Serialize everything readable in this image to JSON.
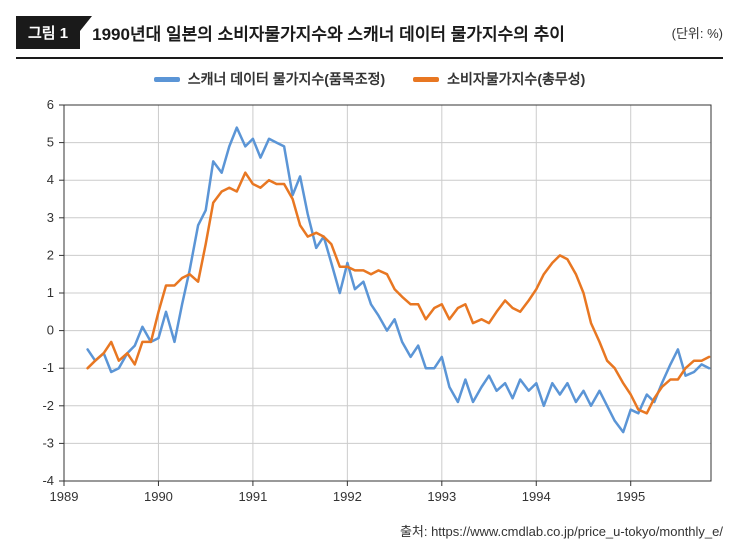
{
  "header": {
    "badge": "그림 1",
    "title": "1990년대 일본의 소비자물가지수와 스캐너 데이터 물가지수의 추이",
    "unit": "(단위: %)"
  },
  "legend": {
    "series1_label": "스캐너 데이터 물가지수(품목조정)",
    "series2_label": "소비자물가지수(총무성)"
  },
  "source": "출처: https://www.cmdlab.co.jp/price_u-tokyo/monthly_e/",
  "chart": {
    "type": "line",
    "background_color": "#ffffff",
    "grid_color": "#cccccc",
    "axis_color": "#333333",
    "label_fontsize": 13,
    "line_width": 2.5,
    "x": {
      "min": 1989,
      "max": 1995.85,
      "ticks": [
        1989,
        1990,
        1991,
        1992,
        1993,
        1994,
        1995
      ],
      "tick_labels": [
        "1989",
        "1990",
        "1991",
        "1992",
        "1993",
        "1994",
        "1995"
      ]
    },
    "y": {
      "min": -4,
      "max": 6,
      "ticks": [
        -4,
        -3,
        -2,
        -1,
        0,
        1,
        2,
        3,
        4,
        5,
        6
      ]
    },
    "series": [
      {
        "name": "scanner",
        "color": "#5b95d6",
        "points": [
          [
            1989.25,
            -0.5
          ],
          [
            1989.33,
            -0.8
          ],
          [
            1989.42,
            -0.6
          ],
          [
            1989.5,
            -1.1
          ],
          [
            1989.58,
            -1.0
          ],
          [
            1989.67,
            -0.6
          ],
          [
            1989.75,
            -0.4
          ],
          [
            1989.83,
            0.1
          ],
          [
            1989.92,
            -0.3
          ],
          [
            1990.0,
            -0.2
          ],
          [
            1990.08,
            0.5
          ],
          [
            1990.17,
            -0.3
          ],
          [
            1990.25,
            0.7
          ],
          [
            1990.33,
            1.6
          ],
          [
            1990.42,
            2.8
          ],
          [
            1990.5,
            3.2
          ],
          [
            1990.58,
            4.5
          ],
          [
            1990.67,
            4.2
          ],
          [
            1990.75,
            4.9
          ],
          [
            1990.83,
            5.4
          ],
          [
            1990.92,
            4.9
          ],
          [
            1991.0,
            5.1
          ],
          [
            1991.08,
            4.6
          ],
          [
            1991.17,
            5.1
          ],
          [
            1991.25,
            5.0
          ],
          [
            1991.33,
            4.9
          ],
          [
            1991.42,
            3.6
          ],
          [
            1991.5,
            4.1
          ],
          [
            1991.58,
            3.1
          ],
          [
            1991.67,
            2.2
          ],
          [
            1991.75,
            2.5
          ],
          [
            1991.83,
            1.8
          ],
          [
            1991.92,
            1.0
          ],
          [
            1992.0,
            1.8
          ],
          [
            1992.08,
            1.1
          ],
          [
            1992.17,
            1.3
          ],
          [
            1992.25,
            0.7
          ],
          [
            1992.33,
            0.4
          ],
          [
            1992.42,
            0.0
          ],
          [
            1992.5,
            0.3
          ],
          [
            1992.58,
            -0.3
          ],
          [
            1992.67,
            -0.7
          ],
          [
            1992.75,
            -0.4
          ],
          [
            1992.83,
            -1.0
          ],
          [
            1992.92,
            -1.0
          ],
          [
            1993.0,
            -0.7
          ],
          [
            1993.08,
            -1.5
          ],
          [
            1993.17,
            -1.9
          ],
          [
            1993.25,
            -1.3
          ],
          [
            1993.33,
            -1.9
          ],
          [
            1993.42,
            -1.5
          ],
          [
            1993.5,
            -1.2
          ],
          [
            1993.58,
            -1.6
          ],
          [
            1993.67,
            -1.4
          ],
          [
            1993.75,
            -1.8
          ],
          [
            1993.83,
            -1.3
          ],
          [
            1993.92,
            -1.6
          ],
          [
            1994.0,
            -1.4
          ],
          [
            1994.08,
            -2.0
          ],
          [
            1994.17,
            -1.4
          ],
          [
            1994.25,
            -1.7
          ],
          [
            1994.33,
            -1.4
          ],
          [
            1994.42,
            -1.9
          ],
          [
            1994.5,
            -1.6
          ],
          [
            1994.58,
            -2.0
          ],
          [
            1994.67,
            -1.6
          ],
          [
            1994.75,
            -2.0
          ],
          [
            1994.83,
            -2.4
          ],
          [
            1994.92,
            -2.7
          ],
          [
            1995.0,
            -2.1
          ],
          [
            1995.08,
            -2.2
          ],
          [
            1995.17,
            -1.7
          ],
          [
            1995.25,
            -1.9
          ],
          [
            1995.33,
            -1.4
          ],
          [
            1995.42,
            -0.9
          ],
          [
            1995.5,
            -0.5
          ],
          [
            1995.58,
            -1.2
          ],
          [
            1995.67,
            -1.1
          ],
          [
            1995.75,
            -0.9
          ],
          [
            1995.83,
            -1.0
          ]
        ]
      },
      {
        "name": "cpi",
        "color": "#e87722",
        "points": [
          [
            1989.25,
            -1.0
          ],
          [
            1989.33,
            -0.8
          ],
          [
            1989.42,
            -0.6
          ],
          [
            1989.5,
            -0.3
          ],
          [
            1989.58,
            -0.8
          ],
          [
            1989.67,
            -0.6
          ],
          [
            1989.75,
            -0.9
          ],
          [
            1989.83,
            -0.3
          ],
          [
            1989.92,
            -0.3
          ],
          [
            1990.0,
            0.5
          ],
          [
            1990.08,
            1.2
          ],
          [
            1990.17,
            1.2
          ],
          [
            1990.25,
            1.4
          ],
          [
            1990.33,
            1.5
          ],
          [
            1990.42,
            1.3
          ],
          [
            1990.5,
            2.3
          ],
          [
            1990.58,
            3.4
          ],
          [
            1990.67,
            3.7
          ],
          [
            1990.75,
            3.8
          ],
          [
            1990.83,
            3.7
          ],
          [
            1990.92,
            4.2
          ],
          [
            1991.0,
            3.9
          ],
          [
            1991.08,
            3.8
          ],
          [
            1991.17,
            4.0
          ],
          [
            1991.25,
            3.9
          ],
          [
            1991.33,
            3.9
          ],
          [
            1991.42,
            3.5
          ],
          [
            1991.5,
            2.8
          ],
          [
            1991.58,
            2.5
          ],
          [
            1991.67,
            2.6
          ],
          [
            1991.75,
            2.5
          ],
          [
            1991.83,
            2.3
          ],
          [
            1991.92,
            1.7
          ],
          [
            1992.0,
            1.7
          ],
          [
            1992.08,
            1.6
          ],
          [
            1992.17,
            1.6
          ],
          [
            1992.25,
            1.5
          ],
          [
            1992.33,
            1.6
          ],
          [
            1992.42,
            1.5
          ],
          [
            1992.5,
            1.1
          ],
          [
            1992.58,
            0.9
          ],
          [
            1992.67,
            0.7
          ],
          [
            1992.75,
            0.7
          ],
          [
            1992.83,
            0.3
          ],
          [
            1992.92,
            0.6
          ],
          [
            1993.0,
            0.7
          ],
          [
            1993.08,
            0.3
          ],
          [
            1993.17,
            0.6
          ],
          [
            1993.25,
            0.7
          ],
          [
            1993.33,
            0.2
          ],
          [
            1993.42,
            0.3
          ],
          [
            1993.5,
            0.2
          ],
          [
            1993.58,
            0.5
          ],
          [
            1993.67,
            0.8
          ],
          [
            1993.75,
            0.6
          ],
          [
            1993.83,
            0.5
          ],
          [
            1993.92,
            0.8
          ],
          [
            1994.0,
            1.1
          ],
          [
            1994.08,
            1.5
          ],
          [
            1994.17,
            1.8
          ],
          [
            1994.25,
            2.0
          ],
          [
            1994.33,
            1.9
          ],
          [
            1994.42,
            1.5
          ],
          [
            1994.5,
            1.0
          ],
          [
            1994.58,
            0.2
          ],
          [
            1994.67,
            -0.3
          ],
          [
            1994.75,
            -0.8
          ],
          [
            1994.83,
            -1.0
          ],
          [
            1994.92,
            -1.4
          ],
          [
            1995.0,
            -1.7
          ],
          [
            1995.08,
            -2.1
          ],
          [
            1995.17,
            -2.2
          ],
          [
            1995.25,
            -1.8
          ],
          [
            1995.33,
            -1.5
          ],
          [
            1995.42,
            -1.3
          ],
          [
            1995.5,
            -1.3
          ],
          [
            1995.58,
            -1.0
          ],
          [
            1995.67,
            -0.8
          ],
          [
            1995.75,
            -0.8
          ],
          [
            1995.83,
            -0.7
          ]
        ]
      }
    ]
  }
}
